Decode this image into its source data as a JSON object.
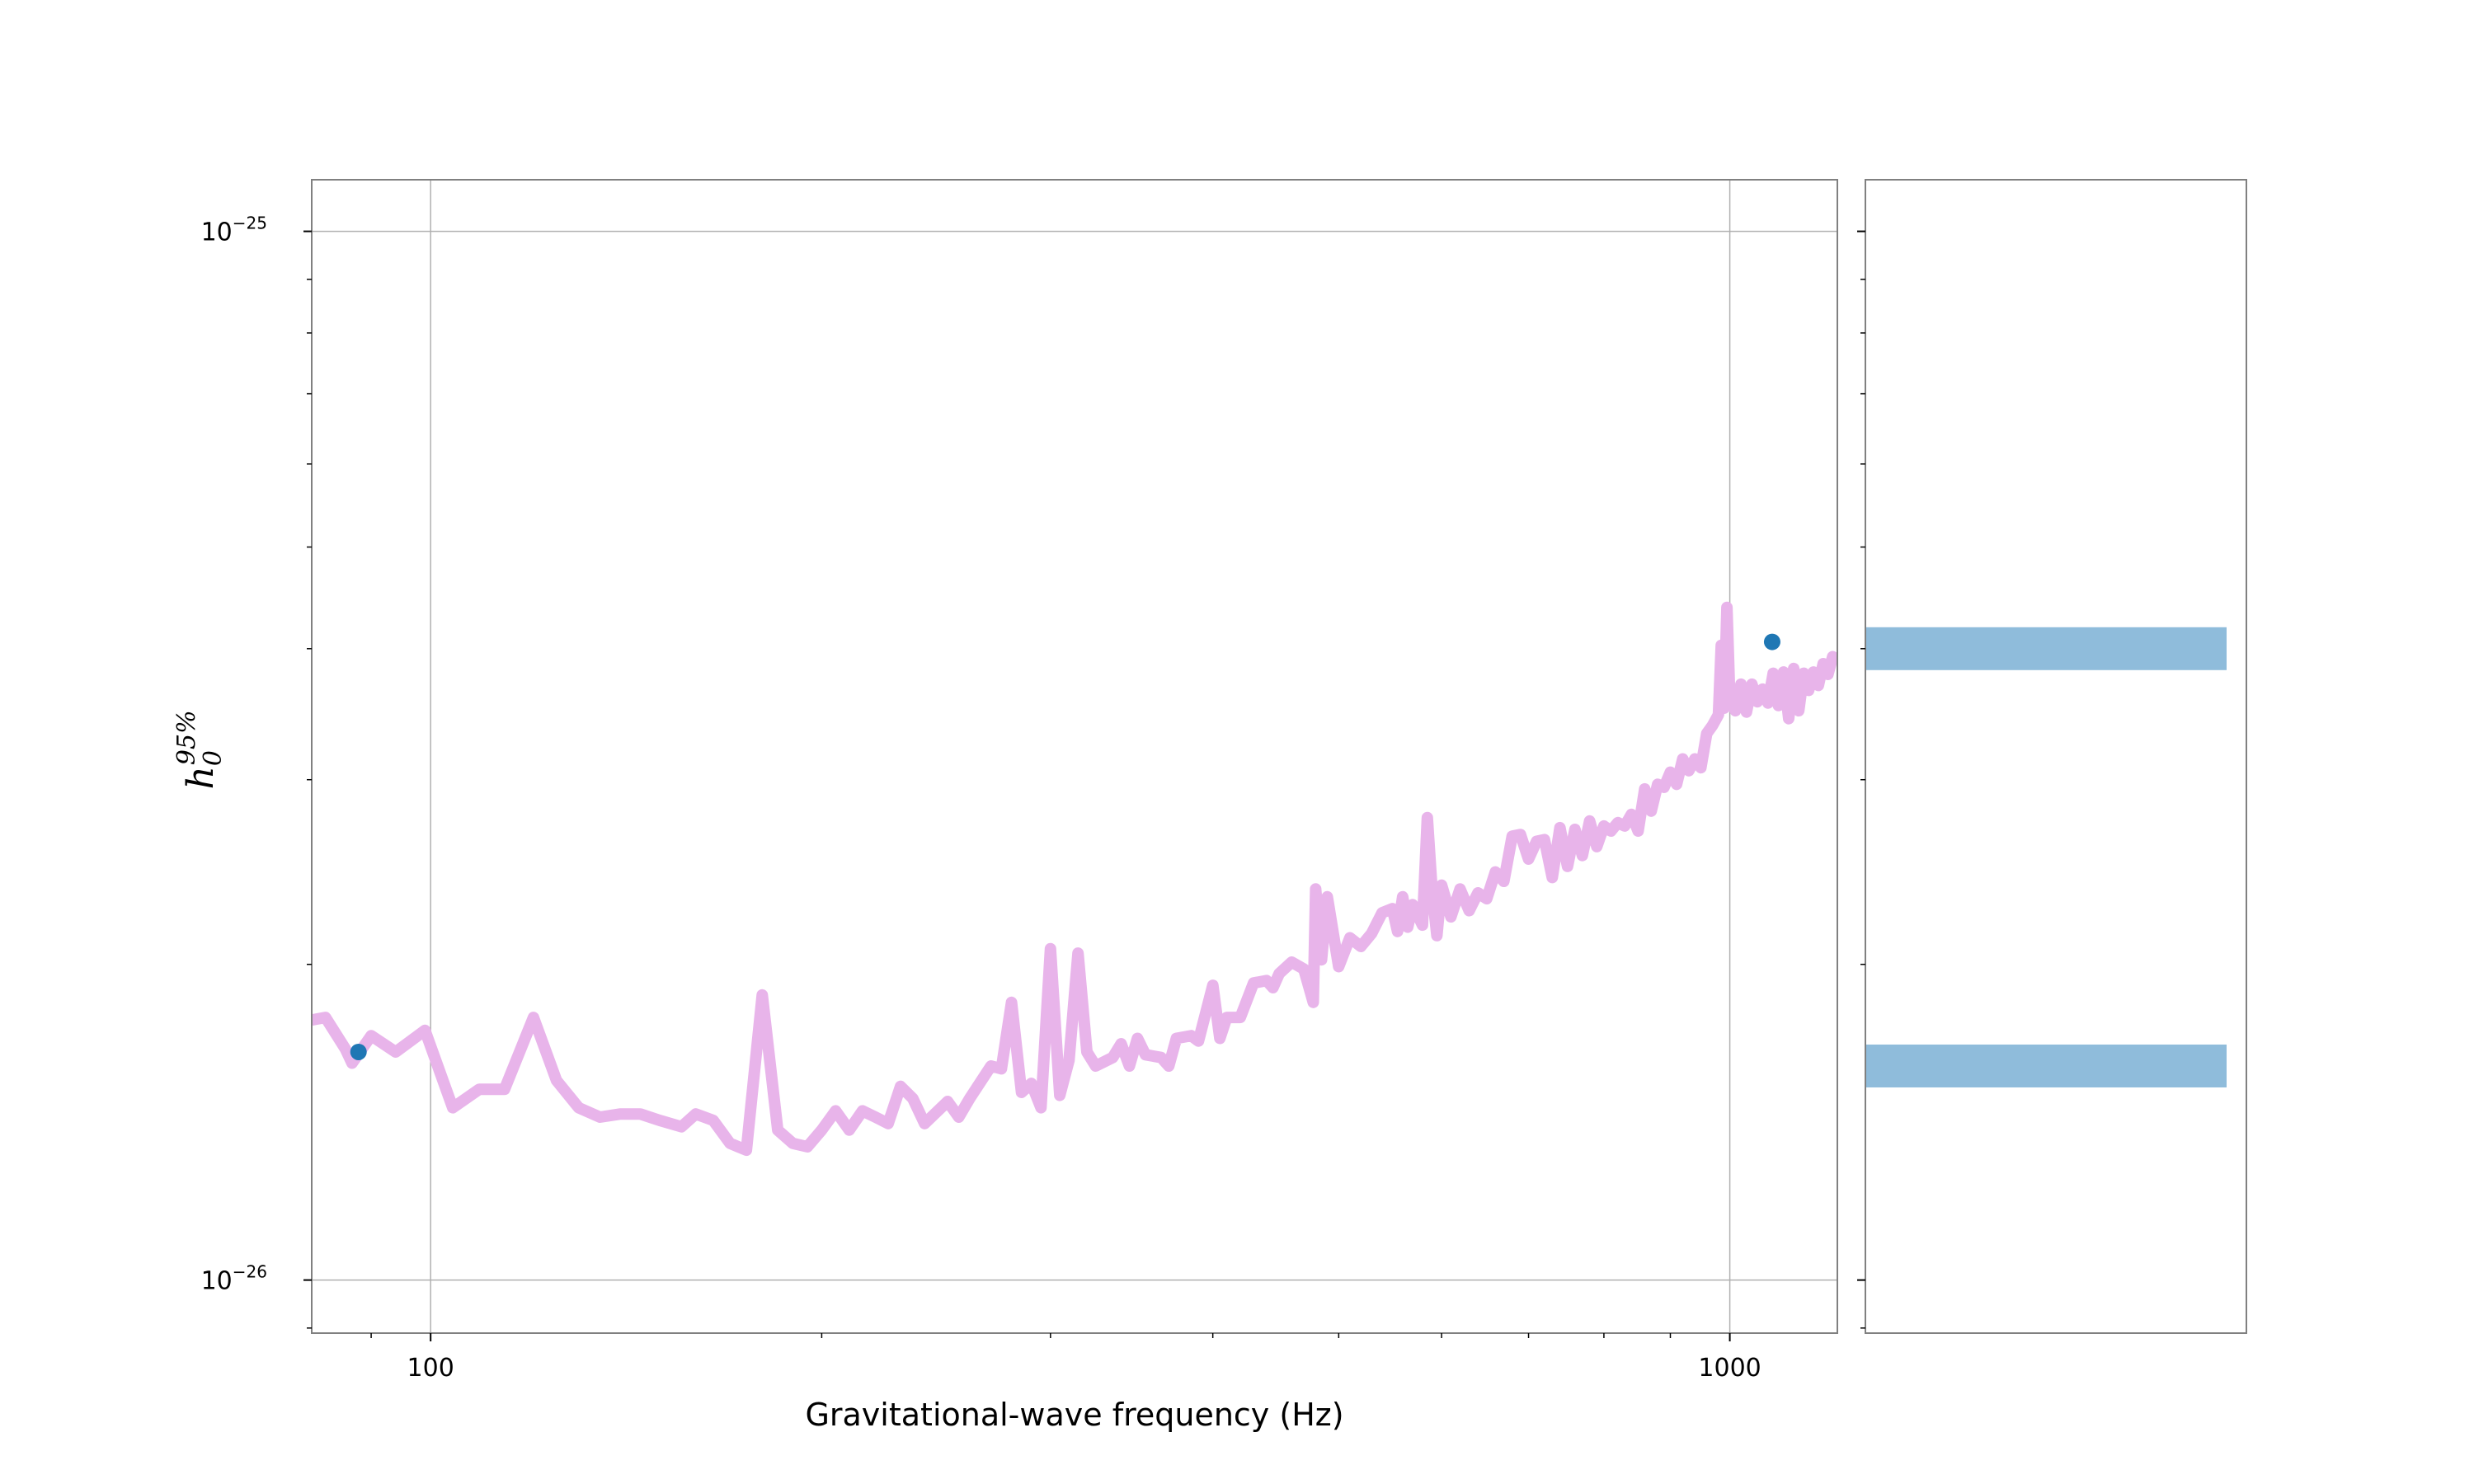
{
  "chart_data": [
    {
      "type": "line",
      "xlabel": "Gravitational-wave frequency (Hz)",
      "ylabel": "h",
      "ylabel_sub": "0",
      "ylabel_sup": "95%",
      "xscale": "log",
      "yscale": "log",
      "xlim": [
        81,
        1210
      ],
      "ylim": [
        8.9e-27,
        1.12e-25
      ],
      "grid": true,
      "x_ticks": [
        {
          "value": 100,
          "label": "100"
        },
        {
          "value": 1000,
          "label": "1000"
        }
      ],
      "y_ticks": [
        {
          "value": 1e-26,
          "label": "10",
          "exp": "−26"
        },
        {
          "value": 1e-25,
          "label": "10",
          "exp": "−25"
        }
      ],
      "series": [
        {
          "color": "#e8b4ea",
          "points": [
            [
              81,
              1.77e-26
            ],
            [
              83,
              1.78e-26
            ],
            [
              86,
              1.66e-26
            ],
            [
              87,
              1.61e-26
            ],
            [
              90,
              1.71e-26
            ],
            [
              94,
              1.65e-26
            ],
            [
              99,
              1.73e-26
            ],
            [
              104,
              1.46e-26
            ],
            [
              109,
              1.52e-26
            ],
            [
              114,
              1.52e-26
            ],
            [
              120,
              1.78e-26
            ],
            [
              125,
              1.55e-26
            ],
            [
              130,
              1.46e-26
            ],
            [
              135,
              1.43e-26
            ],
            [
              140,
              1.44e-26
            ],
            [
              145,
              1.44e-26
            ],
            [
              150,
              1.42e-26
            ],
            [
              156,
              1.4e-26
            ],
            [
              160,
              1.44e-26
            ],
            [
              165,
              1.42e-26
            ],
            [
              170,
              1.35e-26
            ],
            [
              175,
              1.33e-26
            ],
            [
              180,
              1.87e-26
            ],
            [
              185,
              1.39e-26
            ],
            [
              190,
              1.35e-26
            ],
            [
              195,
              1.34e-26
            ],
            [
              200,
              1.39e-26
            ],
            [
              205,
              1.45e-26
            ],
            [
              210,
              1.39e-26
            ],
            [
              215,
              1.45e-26
            ],
            [
              220,
              1.43e-26
            ],
            [
              225,
              1.41e-26
            ],
            [
              230,
              1.53e-26
            ],
            [
              235,
              1.49e-26
            ],
            [
              240,
              1.41e-26
            ],
            [
              250,
              1.48e-26
            ],
            [
              255,
              1.43e-26
            ],
            [
              260,
              1.49e-26
            ],
            [
              270,
              1.6e-26
            ],
            [
              275,
              1.59e-26
            ],
            [
              280,
              1.84e-26
            ],
            [
              285,
              1.51e-26
            ],
            [
              290,
              1.54e-26
            ],
            [
              295,
              1.46e-26
            ],
            [
              300,
              2.07e-26
            ],
            [
              305,
              1.5e-26
            ],
            [
              310,
              1.62e-26
            ],
            [
              315,
              2.05e-26
            ],
            [
              320,
              1.65e-26
            ],
            [
              325,
              1.6e-26
            ],
            [
              335,
              1.63e-26
            ],
            [
              340,
              1.68e-26
            ],
            [
              345,
              1.6e-26
            ],
            [
              350,
              1.7e-26
            ],
            [
              355,
              1.64e-26
            ],
            [
              365,
              1.63e-26
            ],
            [
              370,
              1.6e-26
            ],
            [
              375,
              1.7e-26
            ],
            [
              385,
              1.71e-26
            ],
            [
              390,
              1.69e-26
            ],
            [
              400,
              1.91e-26
            ],
            [
              405,
              1.7e-26
            ],
            [
              410,
              1.78e-26
            ],
            [
              420,
              1.78e-26
            ],
            [
              430,
              1.92e-26
            ],
            [
              440,
              1.93e-26
            ],
            [
              445,
              1.9e-26
            ],
            [
              450,
              1.96e-26
            ],
            [
              460,
              2.01e-26
            ],
            [
              470,
              1.98e-26
            ],
            [
              478,
              1.84e-26
            ],
            [
              480,
              2.36e-26
            ],
            [
              485,
              2.02e-26
            ],
            [
              490,
              2.32e-26
            ],
            [
              500,
              1.99e-26
            ],
            [
              510,
              2.12e-26
            ],
            [
              520,
              2.08e-26
            ],
            [
              530,
              2.14e-26
            ],
            [
              540,
              2.24e-26
            ],
            [
              550,
              2.26e-26
            ],
            [
              555,
              2.15e-26
            ],
            [
              560,
              2.32e-26
            ],
            [
              565,
              2.17e-26
            ],
            [
              570,
              2.28e-26
            ],
            [
              580,
              2.18e-26
            ],
            [
              585,
              2.76e-26
            ],
            [
              590,
              2.35e-26
            ],
            [
              595,
              2.13e-26
            ],
            [
              600,
              2.38e-26
            ],
            [
              610,
              2.22e-26
            ],
            [
              620,
              2.36e-26
            ],
            [
              630,
              2.25e-26
            ],
            [
              640,
              2.34e-26
            ],
            [
              650,
              2.31e-26
            ],
            [
              660,
              2.45e-26
            ],
            [
              670,
              2.4e-26
            ],
            [
              680,
              2.65e-26
            ],
            [
              690,
              2.66e-26
            ],
            [
              700,
              2.52e-26
            ],
            [
              710,
              2.62e-26
            ],
            [
              720,
              2.63e-26
            ],
            [
              730,
              2.42e-26
            ],
            [
              740,
              2.7e-26
            ],
            [
              750,
              2.48e-26
            ],
            [
              760,
              2.69e-26
            ],
            [
              770,
              2.54e-26
            ],
            [
              780,
              2.74e-26
            ],
            [
              790,
              2.59e-26
            ],
            [
              800,
              2.71e-26
            ],
            [
              810,
              2.68e-26
            ],
            [
              820,
              2.73e-26
            ],
            [
              830,
              2.71e-26
            ],
            [
              840,
              2.78e-26
            ],
            [
              850,
              2.68e-26
            ],
            [
              860,
              2.94e-26
            ],
            [
              870,
              2.8e-26
            ],
            [
              880,
              2.97e-26
            ],
            [
              890,
              2.95e-26
            ],
            [
              900,
              3.05e-26
            ],
            [
              910,
              2.97e-26
            ],
            [
              920,
              3.14e-26
            ],
            [
              930,
              3.06e-26
            ],
            [
              940,
              3.14e-26
            ],
            [
              950,
              3.08e-26
            ],
            [
              960,
              3.32e-26
            ],
            [
              970,
              3.38e-26
            ],
            [
              980,
              3.46e-26
            ],
            [
              985,
              4.03e-26
            ],
            [
              990,
              3.51e-26
            ],
            [
              995,
              4.38e-26
            ],
            [
              1000,
              3.58e-26
            ],
            [
              1010,
              3.49e-26
            ],
            [
              1020,
              3.7e-26
            ],
            [
              1030,
              3.48e-26
            ],
            [
              1040,
              3.7e-26
            ],
            [
              1050,
              3.56e-26
            ],
            [
              1060,
              3.66e-26
            ],
            [
              1070,
              3.55e-26
            ],
            [
              1080,
              3.79e-26
            ],
            [
              1090,
              3.53e-26
            ],
            [
              1100,
              3.8e-26
            ],
            [
              1110,
              3.43e-26
            ],
            [
              1120,
              3.83e-26
            ],
            [
              1130,
              3.49e-26
            ],
            [
              1140,
              3.79e-26
            ],
            [
              1150,
              3.65e-26
            ],
            [
              1160,
              3.8e-26
            ],
            [
              1170,
              3.69e-26
            ],
            [
              1180,
              3.87e-26
            ],
            [
              1190,
              3.78e-26
            ],
            [
              1200,
              3.93e-26
            ],
            [
              1210,
              3.89e-26
            ]
          ]
        },
        {
          "type": "scatter",
          "color": "#1f77b4",
          "points": [
            [
              88,
              1.65e-26
            ],
            [
              1078,
              4.06e-26
            ]
          ]
        }
      ]
    },
    {
      "type": "bar",
      "orientation": "horizontal",
      "shares_y_axis": true,
      "color": "#8fbcdb",
      "values": [
        {
          "center": 4e-26
        },
        {
          "center": 1.6e-26
        }
      ]
    }
  ]
}
